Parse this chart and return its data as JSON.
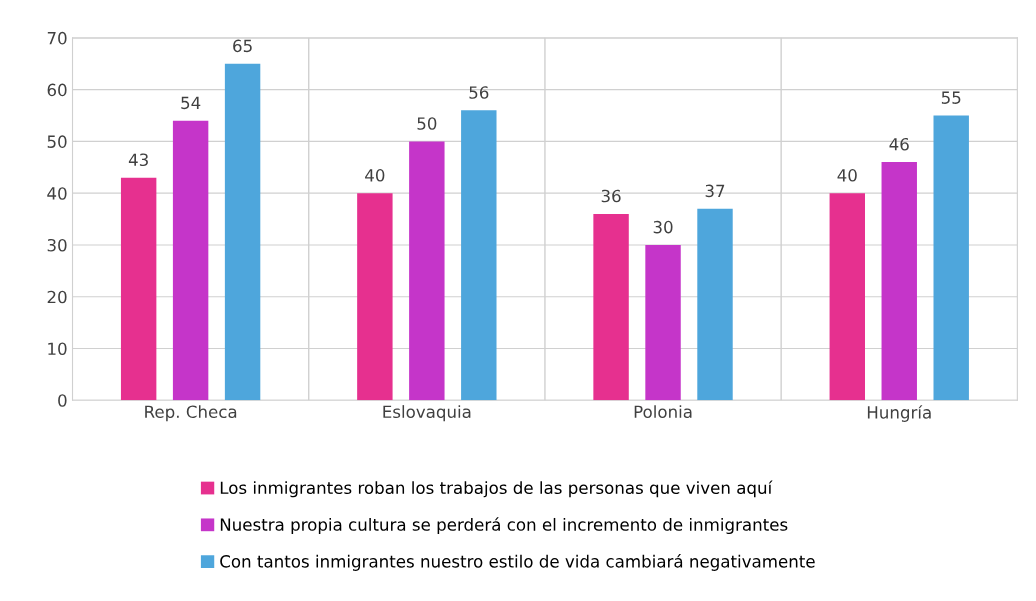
{
  "chart_data": {
    "type": "bar",
    "categories": [
      "Rep. Checa",
      "Eslovaquia",
      "Polonia",
      "Hungría"
    ],
    "series": [
      {
        "name": "Los inmigrantes roban los trabajos de las personas que viven aquí",
        "color": "#e6308f",
        "values": [
          43,
          40,
          36,
          40
        ]
      },
      {
        "name": "Nuestra propia cultura se perderá con el incremento de inmigrantes",
        "color": "#c535c9",
        "values": [
          54,
          50,
          30,
          46
        ]
      },
      {
        "name": "Con tantos inmigrantes nuestro estilo de vida cambiará negativamente",
        "color": "#4ea6dc",
        "values": [
          65,
          56,
          37,
          55
        ]
      }
    ],
    "ylim": [
      0,
      70
    ],
    "yticks": [
      0,
      10,
      20,
      30,
      40,
      50,
      60,
      70
    ],
    "grid": true,
    "legend": "bottom",
    "data_labels": true
  }
}
